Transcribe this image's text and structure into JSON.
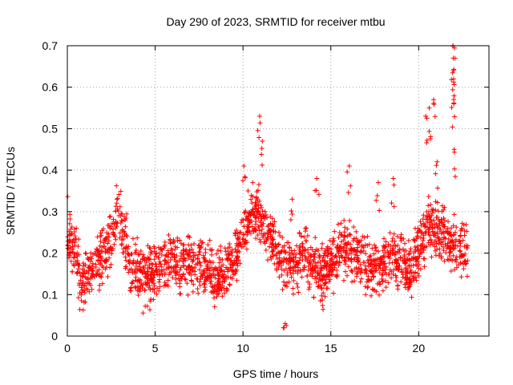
{
  "chart_data": {
    "type": "scatter",
    "title": "Day 290 of 2023, SRMTID for receiver mtbu",
    "xlabel": "GPS time / hours",
    "ylabel": "SRMTID / TECUs",
    "xlim": [
      0,
      24
    ],
    "ylim": [
      0,
      0.7
    ],
    "xticks": [
      0,
      5,
      10,
      15,
      20
    ],
    "yticks": [
      0,
      0.1,
      0.2,
      0.3,
      0.4,
      0.5,
      0.6,
      0.7
    ],
    "grid": true,
    "marker": "+",
    "marker_color": "#ff0000",
    "series": [
      {
        "name": "SRMTID",
        "profile": [
          [
            0.0,
            0.25
          ],
          [
            0.5,
            0.2
          ],
          [
            0.8,
            0.12
          ],
          [
            1.2,
            0.15
          ],
          [
            1.6,
            0.17
          ],
          [
            2.0,
            0.19
          ],
          [
            2.5,
            0.23
          ],
          [
            2.8,
            0.3
          ],
          [
            3.2,
            0.24
          ],
          [
            3.6,
            0.16
          ],
          [
            4.0,
            0.15
          ],
          [
            4.5,
            0.15
          ],
          [
            5.0,
            0.15
          ],
          [
            5.5,
            0.17
          ],
          [
            6.0,
            0.18
          ],
          [
            6.5,
            0.17
          ],
          [
            7.0,
            0.17
          ],
          [
            7.5,
            0.17
          ],
          [
            8.0,
            0.16
          ],
          [
            8.5,
            0.14
          ],
          [
            9.0,
            0.15
          ],
          [
            9.5,
            0.18
          ],
          [
            10.0,
            0.25
          ],
          [
            10.5,
            0.29
          ],
          [
            11.0,
            0.3
          ],
          [
            11.3,
            0.26
          ],
          [
            11.8,
            0.21
          ],
          [
            12.3,
            0.18
          ],
          [
            13.0,
            0.17
          ],
          [
            13.5,
            0.21
          ],
          [
            14.0,
            0.16
          ],
          [
            14.5,
            0.15
          ],
          [
            15.0,
            0.17
          ],
          [
            15.5,
            0.21
          ],
          [
            16.0,
            0.2
          ],
          [
            16.5,
            0.19
          ],
          [
            17.0,
            0.17
          ],
          [
            17.5,
            0.16
          ],
          [
            18.0,
            0.17
          ],
          [
            18.5,
            0.19
          ],
          [
            19.0,
            0.18
          ],
          [
            19.5,
            0.16
          ],
          [
            20.0,
            0.21
          ],
          [
            20.5,
            0.27
          ],
          [
            21.0,
            0.26
          ],
          [
            21.5,
            0.24
          ],
          [
            22.0,
            0.22
          ],
          [
            22.5,
            0.2
          ],
          [
            22.8,
            0.2
          ]
        ],
        "spread": 0.06,
        "density_per_hour": 95,
        "peaks": [
          [
            10.05,
            0.41
          ],
          [
            10.55,
            0.37
          ],
          [
            10.95,
            0.53
          ],
          [
            11.1,
            0.47
          ],
          [
            12.8,
            0.33
          ],
          [
            14.2,
            0.38
          ],
          [
            16.05,
            0.41
          ],
          [
            17.7,
            0.37
          ],
          [
            18.55,
            0.38
          ],
          [
            20.4,
            0.53
          ],
          [
            20.6,
            0.55
          ],
          [
            20.85,
            0.57
          ],
          [
            21.95,
            0.7
          ],
          [
            21.97,
            0.67
          ],
          [
            21.98,
            0.64
          ],
          [
            21.99,
            0.62
          ],
          [
            22.0,
            0.56
          ],
          [
            22.02,
            0.45
          ],
          [
            21.05,
            0.42
          ],
          [
            12.4,
            0.03
          ]
        ]
      }
    ]
  }
}
